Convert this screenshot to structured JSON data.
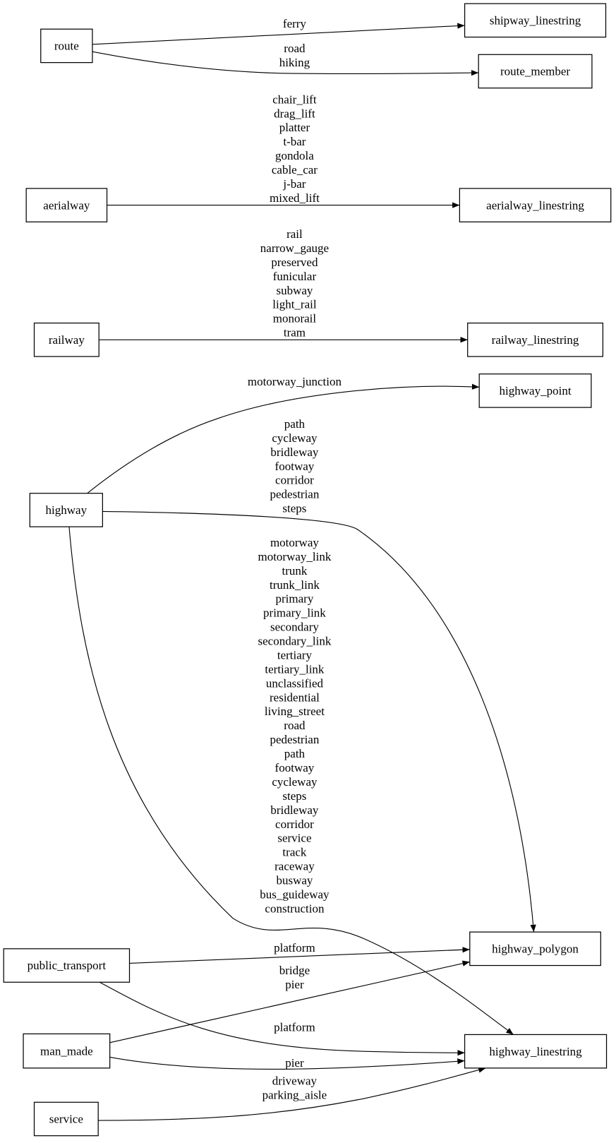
{
  "nodes": {
    "route": "route",
    "shipway_linestring": "shipway_linestring",
    "route_member": "route_member",
    "aerialway": "aerialway",
    "aerialway_linestring": "aerialway_linestring",
    "railway": "railway",
    "railway_linestring": "railway_linestring",
    "highway_point": "highway_point",
    "highway": "highway",
    "highway_polygon": "highway_polygon",
    "public_transport": "public_transport",
    "man_made": "man_made",
    "highway_linestring": "highway_linestring",
    "service": "service"
  },
  "edges": [
    {
      "id": "route-shipway",
      "from": "route",
      "to": "shipway_linestring",
      "labels": [
        "ferry"
      ]
    },
    {
      "id": "route-member",
      "from": "route",
      "to": "route_member",
      "labels": [
        "road",
        "hiking"
      ]
    },
    {
      "id": "aerialway",
      "from": "aerialway",
      "to": "aerialway_linestring",
      "labels": [
        "chair_lift",
        "drag_lift",
        "platter",
        "t-bar",
        "gondola",
        "cable_car",
        "j-bar",
        "mixed_lift"
      ]
    },
    {
      "id": "railway",
      "from": "railway",
      "to": "railway_linestring",
      "labels": [
        "rail",
        "narrow_gauge",
        "preserved",
        "funicular",
        "subway",
        "light_rail",
        "monorail",
        "tram"
      ]
    },
    {
      "id": "highway-point",
      "from": "highway",
      "to": "highway_point",
      "labels": [
        "motorway_junction"
      ]
    },
    {
      "id": "highway-polygon",
      "from": "highway",
      "to": "highway_polygon",
      "labels": [
        "path",
        "cycleway",
        "bridleway",
        "footway",
        "corridor",
        "pedestrian",
        "steps"
      ]
    },
    {
      "id": "highway-linestring",
      "from": "highway",
      "to": "highway_linestring",
      "labels": [
        "motorway",
        "motorway_link",
        "trunk",
        "trunk_link",
        "primary",
        "primary_link",
        "secondary",
        "secondary_link",
        "tertiary",
        "tertiary_link",
        "unclassified",
        "residential",
        "living_street",
        "road",
        "pedestrian",
        "path",
        "footway",
        "cycleway",
        "steps",
        "bridleway",
        "corridor",
        "service",
        "track",
        "raceway",
        "busway",
        "bus_guideway",
        "construction"
      ]
    },
    {
      "id": "pt-polygon",
      "from": "public_transport",
      "to": "highway_polygon",
      "labels": [
        "platform"
      ]
    },
    {
      "id": "manmade-polygon",
      "from": "man_made",
      "to": "highway_polygon",
      "labels": [
        "bridge",
        "pier"
      ]
    },
    {
      "id": "pt-linestring",
      "from": "public_transport",
      "to": "highway_linestring",
      "labels": [
        "platform"
      ]
    },
    {
      "id": "manmade-linestring",
      "from": "man_made",
      "to": "highway_linestring",
      "labels": [
        "pier"
      ]
    },
    {
      "id": "service-linestring",
      "from": "service",
      "to": "highway_linestring",
      "labels": [
        "driveway",
        "parking_aisle"
      ]
    }
  ]
}
